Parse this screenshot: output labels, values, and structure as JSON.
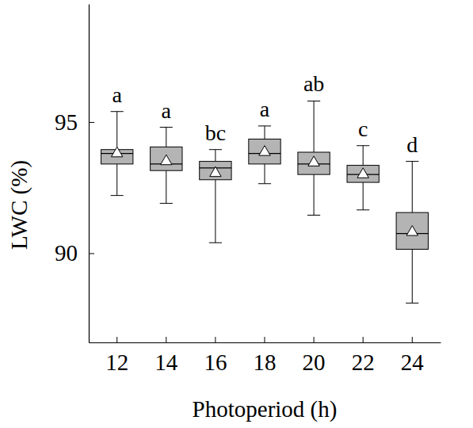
{
  "chart_data": {
    "type": "box",
    "x_label": "Photoperiod (h)",
    "y_label": "LWC (%)",
    "categories": [
      "12",
      "14",
      "16",
      "18",
      "20",
      "22",
      "24"
    ],
    "whisker_low": [
      92.2,
      91.9,
      90.4,
      92.65,
      91.45,
      91.65,
      88.1
    ],
    "q1": [
      93.4,
      93.15,
      92.8,
      93.4,
      93.0,
      92.7,
      90.15
    ],
    "median": [
      93.8,
      93.4,
      93.25,
      93.8,
      93.4,
      93.0,
      90.75
    ],
    "q3": [
      93.95,
      94.05,
      93.5,
      94.35,
      93.85,
      93.35,
      91.55
    ],
    "whisker_high": [
      95.4,
      94.8,
      93.95,
      94.85,
      95.8,
      94.1,
      93.5
    ],
    "mean": [
      93.8,
      93.5,
      93.05,
      93.85,
      93.45,
      93.0,
      90.8
    ],
    "annotations": [
      "a",
      "a",
      "bc",
      "a",
      "ab",
      "c",
      "d"
    ],
    "color": "#b4b4b4",
    "marker": "triangle",
    "ylim": [
      86.6,
      99.5
    ],
    "yticks": [
      90,
      95
    ]
  }
}
